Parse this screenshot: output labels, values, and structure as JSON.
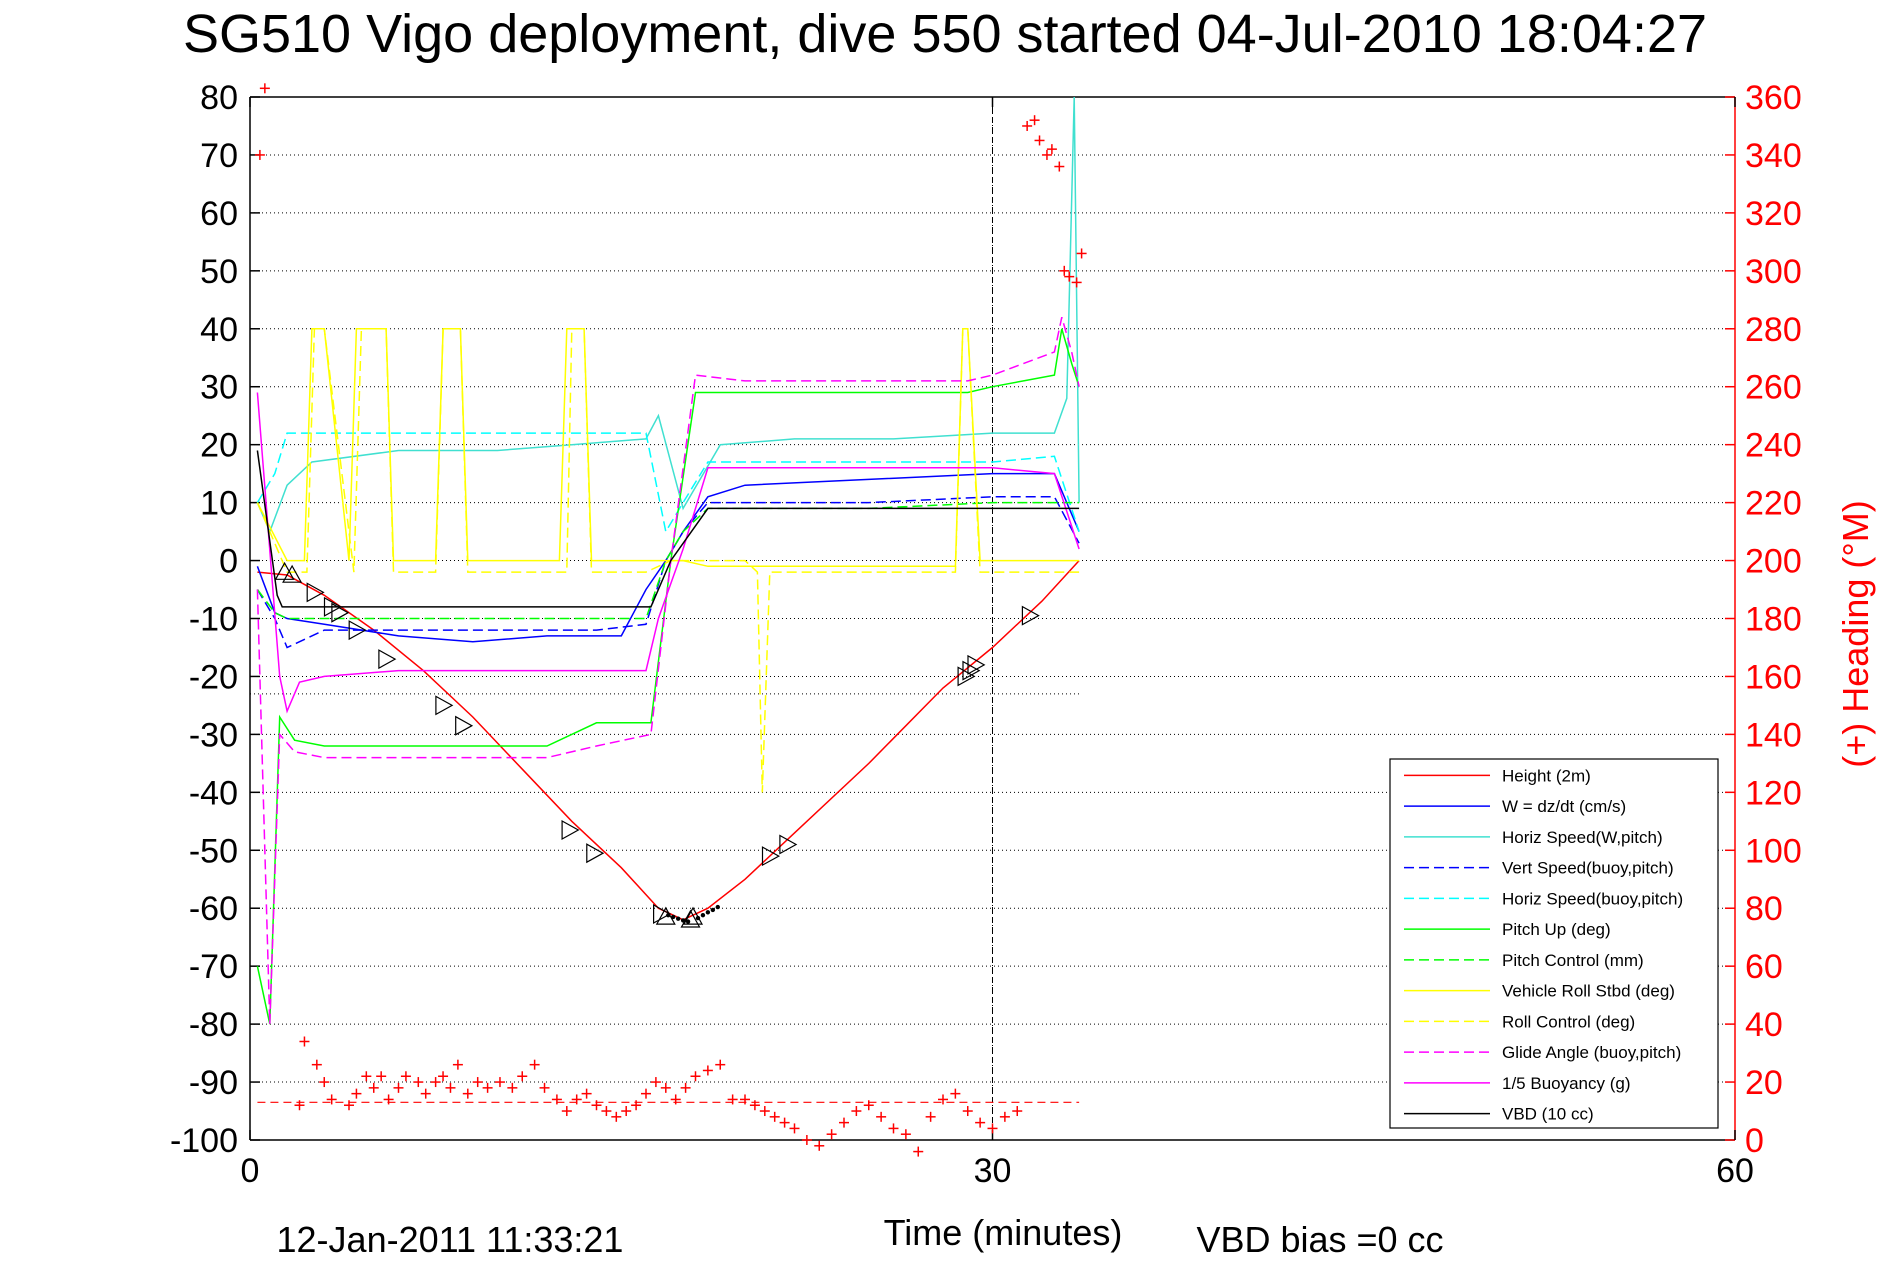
{
  "chart_data": {
    "type": "line",
    "title": "SG510 Vigo deployment, dive 550 started 04-Jul-2010 18:04:27",
    "xlabel": "Time (minutes)",
    "ylabel_right": "(+) Heading (°M)",
    "footer_left": "12-Jan-2011 11:33:21",
    "footer_right": "VBD bias =0 cc",
    "xlim": [
      0,
      60
    ],
    "ylim_left": [
      -100,
      80
    ],
    "ylim_right": [
      0,
      360
    ],
    "x_ticks": [
      0,
      30,
      60
    ],
    "y_ticks_left": [
      80,
      70,
      60,
      50,
      40,
      30,
      20,
      10,
      0,
      -10,
      -20,
      -30,
      -40,
      -50,
      -60,
      -70,
      -80,
      -90,
      -100
    ],
    "y_ticks_right": [
      360,
      340,
      320,
      300,
      280,
      260,
      240,
      220,
      200,
      180,
      160,
      140,
      120,
      100,
      80,
      60,
      40,
      20,
      0
    ],
    "grid": true,
    "legend_position": "bottom-right",
    "series": [
      {
        "name": "Height (2m)",
        "color": "#ff0000",
        "style": "solid",
        "x": [
          0.3,
          1.5,
          3,
          5,
          7,
          9,
          11,
          13,
          15,
          16.5,
          17.5,
          18.5,
          20,
          22,
          25,
          28,
          30,
          32,
          33.5
        ],
        "y": [
          -2,
          -2.5,
          -6,
          -12,
          -19,
          -27,
          -36,
          -45,
          -53,
          -60,
          -62,
          -60,
          -55,
          -47,
          -35,
          -22,
          -15,
          -7,
          0
        ]
      },
      {
        "name": "W = dz/dt (cm/s)",
        "color": "#0000ff",
        "style": "solid",
        "x": [
          0.3,
          1,
          1.5,
          3,
          6,
          9,
          12,
          15,
          16,
          16.8,
          17.5,
          18.5,
          20,
          25,
          30,
          32.5,
          33.5
        ],
        "y": [
          -1,
          -9,
          -10,
          -11,
          -13,
          -14,
          -13,
          -13,
          -5,
          0,
          5,
          11,
          13,
          14,
          15,
          15,
          5
        ]
      },
      {
        "name": "Horiz Speed(W,pitch)",
        "color": "#40e0d0",
        "style": "solid",
        "x": [
          0.3,
          0.8,
          1.5,
          2.5,
          6,
          10,
          13,
          16,
          16.5,
          17.5,
          19,
          22,
          26,
          30,
          32.5,
          33,
          33.3,
          33.5
        ],
        "y": [
          10,
          5,
          13,
          17,
          19,
          19,
          20,
          21,
          25,
          9,
          20,
          21,
          21,
          22,
          22,
          28,
          80,
          10
        ]
      },
      {
        "name": "Vert Speed(buoy,pitch)",
        "color": "#0000ff",
        "style": "dashed",
        "x": [
          0.3,
          1,
          1.5,
          3,
          8,
          14,
          16,
          16.8,
          17.5,
          18.5,
          25,
          30,
          32.5,
          33.5
        ],
        "y": [
          -5,
          -10,
          -15,
          -12,
          -12,
          -12,
          -11,
          0,
          5,
          10,
          10,
          11,
          11,
          3
        ]
      },
      {
        "name": "Horiz Speed(buoy,pitch)",
        "color": "#00ffff",
        "style": "dashed",
        "x": [
          0.3,
          1,
          1.5,
          3,
          8,
          14,
          16,
          16.8,
          17.5,
          18.5,
          25,
          30,
          32.5,
          33.5
        ],
        "y": [
          10,
          15,
          22,
          22,
          22,
          22,
          22,
          5,
          10,
          17,
          17,
          17,
          18,
          5
        ]
      },
      {
        "name": "Pitch Up (deg)",
        "color": "#00ff00",
        "style": "solid",
        "x": [
          0.3,
          0.8,
          1.2,
          1.8,
          3,
          6,
          10,
          12,
          14,
          16.2,
          17,
          18,
          20,
          25,
          29,
          30,
          32.5,
          32.8,
          33.2,
          33.5
        ],
        "y": [
          -70,
          -80,
          -27,
          -31,
          -32,
          -32,
          -32,
          -32,
          -28,
          -28,
          0,
          29,
          29,
          29,
          29,
          30,
          32,
          40,
          34,
          30
        ]
      },
      {
        "name": "Pitch Control (mm)",
        "color": "#00ff00",
        "style": "dashed",
        "x": [
          0.3,
          1,
          1.5,
          3,
          8,
          14,
          16,
          16.8,
          17.5,
          18.5,
          25,
          30,
          33.5
        ],
        "y": [
          -5,
          -9,
          -10,
          -10,
          -10,
          -10,
          -10,
          0,
          5,
          9,
          9,
          10,
          10
        ]
      },
      {
        "name": "Vehicle Roll Stbd (deg)",
        "color": "#ffff00",
        "style": "solid",
        "x": [
          0.3,
          1.5,
          2.2,
          2.5,
          3,
          4,
          4.3,
          5.5,
          5.8,
          7.5,
          7.8,
          8.5,
          8.8,
          12.5,
          12.8,
          13.5,
          13.8,
          16,
          16.5,
          17.5,
          18.5,
          20,
          25,
          28.5,
          28.8,
          29,
          29.5,
          30,
          32.5,
          33.5
        ],
        "y": [
          10,
          0,
          0,
          40,
          40,
          0,
          40,
          40,
          0,
          0,
          40,
          40,
          0,
          0,
          40,
          40,
          0,
          0,
          0,
          0,
          -1,
          -1,
          -1,
          -1,
          40,
          40,
          0,
          0,
          0,
          0
        ]
      },
      {
        "name": "Roll Control (deg)",
        "color": "#ffff00",
        "style": "dashed",
        "x": [
          0.3,
          1.5,
          2.3,
          2.6,
          3,
          4.2,
          4.5,
          5.5,
          5.8,
          7.5,
          7.8,
          8.5,
          8.8,
          12.8,
          13,
          13.5,
          13.8,
          16,
          17,
          20,
          20.5,
          20.7,
          21,
          25,
          28.5,
          28.8,
          29,
          29.5,
          30,
          33.5
        ],
        "y": [
          10,
          -2,
          -2,
          40,
          40,
          -2,
          40,
          40,
          -2,
          -2,
          40,
          40,
          -2,
          -2,
          40,
          40,
          -2,
          -2,
          0,
          0,
          -2,
          -40,
          -2,
          -2,
          -2,
          40,
          40,
          -2,
          -2,
          -2
        ]
      },
      {
        "name": "Glide Angle (buoy,pitch)",
        "color": "#ff00ff",
        "style": "dashed",
        "x": [
          0.3,
          0.8,
          1.2,
          1.8,
          3,
          6,
          10,
          12,
          14,
          16.2,
          17,
          18,
          20,
          25,
          29,
          30,
          32.5,
          32.8,
          33.2,
          33.5
        ],
        "y": [
          -5,
          -80,
          -30,
          -33,
          -34,
          -34,
          -34,
          -34,
          -32,
          -30,
          0,
          32,
          31,
          31,
          31,
          32,
          36,
          42,
          36,
          30
        ]
      },
      {
        "name": "1/5 Buoyancy (g)",
        "color": "#ff00ff",
        "style": "solid",
        "x": [
          0.3,
          1.2,
          1.5,
          2,
          3,
          6,
          12,
          16,
          16.5,
          17.5,
          18.5,
          20,
          30,
          32.5,
          33.5
        ],
        "y": [
          29,
          -20,
          -26,
          -21,
          -20,
          -19,
          -19,
          -19,
          -10,
          2,
          16,
          16,
          16,
          15,
          2
        ]
      },
      {
        "name": "VBD (10 cc)",
        "color": "#000000",
        "style": "solid",
        "x": [
          0.3,
          1.1,
          1.3,
          16.2,
          17,
          18.5,
          32.5,
          33.5
        ],
        "y": [
          19,
          -6,
          -8,
          -8,
          0,
          9,
          9,
          9
        ]
      }
    ],
    "heading_series": {
      "name": "Heading",
      "axis": "right",
      "color": "#ff0000",
      "marker": "+",
      "x": [
        0.4,
        0.6,
        2,
        2.2,
        2.7,
        3,
        3.3,
        4,
        4.3,
        4.7,
        5,
        5.3,
        5.6,
        6,
        6.3,
        6.8,
        7.1,
        7.5,
        7.8,
        8.1,
        8.4,
        8.8,
        9.2,
        9.6,
        10.1,
        10.6,
        11,
        11.5,
        11.9,
        12.4,
        12.8,
        13.2,
        13.6,
        14,
        14.4,
        14.8,
        15.2,
        15.6,
        16,
        16.4,
        16.8,
        17.2,
        17.6,
        18,
        18.5,
        19,
        19.5,
        20,
        20.4,
        20.8,
        21.2,
        21.6,
        22,
        22.5,
        23,
        23.5,
        24,
        24.5,
        25,
        25.5,
        26,
        26.5,
        27,
        27.5,
        28,
        28.5,
        29,
        29.5,
        30,
        30.5,
        31,
        31.4,
        31.7,
        31.9,
        32.2,
        32.4,
        32.7,
        32.9,
        33.1,
        33.4,
        33.6
      ],
      "y": [
        340,
        363,
        12,
        34,
        26,
        20,
        14,
        12,
        16,
        22,
        18,
        22,
        14,
        18,
        22,
        20,
        16,
        20,
        22,
        18,
        26,
        16,
        20,
        18,
        20,
        18,
        22,
        26,
        18,
        14,
        10,
        14,
        16,
        12,
        10,
        8,
        10,
        12,
        16,
        20,
        18,
        14,
        18,
        22,
        24,
        26,
        14,
        14,
        12,
        10,
        8,
        6,
        4,
        0,
        -2,
        2,
        6,
        10,
        12,
        8,
        4,
        2,
        -4,
        8,
        14,
        16,
        10,
        6,
        4,
        8,
        10,
        350,
        352,
        345,
        340,
        342,
        336,
        300,
        298,
        296,
        306
      ]
    },
    "heading_reference": 13,
    "marker_points": {
      "marker": "triangle",
      "points": [
        {
          "x": 1.4,
          "y": -2,
          "dir": "up"
        },
        {
          "x": 1.7,
          "y": -2.5,
          "dir": "up"
        },
        {
          "x": 2.6,
          "y": -5.5,
          "dir": "right"
        },
        {
          "x": 3.3,
          "y": -8,
          "dir": "right"
        },
        {
          "x": 3.6,
          "y": -9,
          "dir": "right"
        },
        {
          "x": 4.3,
          "y": -12,
          "dir": "right"
        },
        {
          "x": 5.5,
          "y": -17,
          "dir": "right"
        },
        {
          "x": 7.8,
          "y": -25,
          "dir": "right"
        },
        {
          "x": 8.6,
          "y": -28.5,
          "dir": "right"
        },
        {
          "x": 12.9,
          "y": -46.5,
          "dir": "right"
        },
        {
          "x": 13.9,
          "y": -50.5,
          "dir": "right"
        },
        {
          "x": 16.6,
          "y": -61,
          "dir": "right"
        },
        {
          "x": 16.8,
          "y": -61.5,
          "dir": "up"
        },
        {
          "x": 17.8,
          "y": -62,
          "dir": "up"
        },
        {
          "x": 17.9,
          "y": -61.5,
          "dir": "up"
        },
        {
          "x": 21,
          "y": -51,
          "dir": "right"
        },
        {
          "x": 21.7,
          "y": -49,
          "dir": "right"
        },
        {
          "x": 28.9,
          "y": -20,
          "dir": "right"
        },
        {
          "x": 29.1,
          "y": -19,
          "dir": "right"
        },
        {
          "x": 29.3,
          "y": -18,
          "dir": "right"
        },
        {
          "x": 31.5,
          "y": -9.5,
          "dir": "right"
        }
      ]
    },
    "black_dots": [
      [
        16.9,
        -61.2
      ],
      [
        17.1,
        -61.5
      ],
      [
        17.3,
        -61.8
      ],
      [
        17.5,
        -62.1
      ],
      [
        17.7,
        -62.3
      ],
      [
        18.1,
        -61.7
      ],
      [
        18.3,
        -61.2
      ],
      [
        18.5,
        -60.7
      ],
      [
        18.7,
        -60.3
      ],
      [
        18.9,
        -59.8
      ]
    ],
    "vertical_lines": [
      {
        "x": 30,
        "style": "dashed",
        "color": "#000000"
      }
    ],
    "short_dotted_line": {
      "x": [
        0,
        33.5
      ],
      "y": -23
    }
  }
}
